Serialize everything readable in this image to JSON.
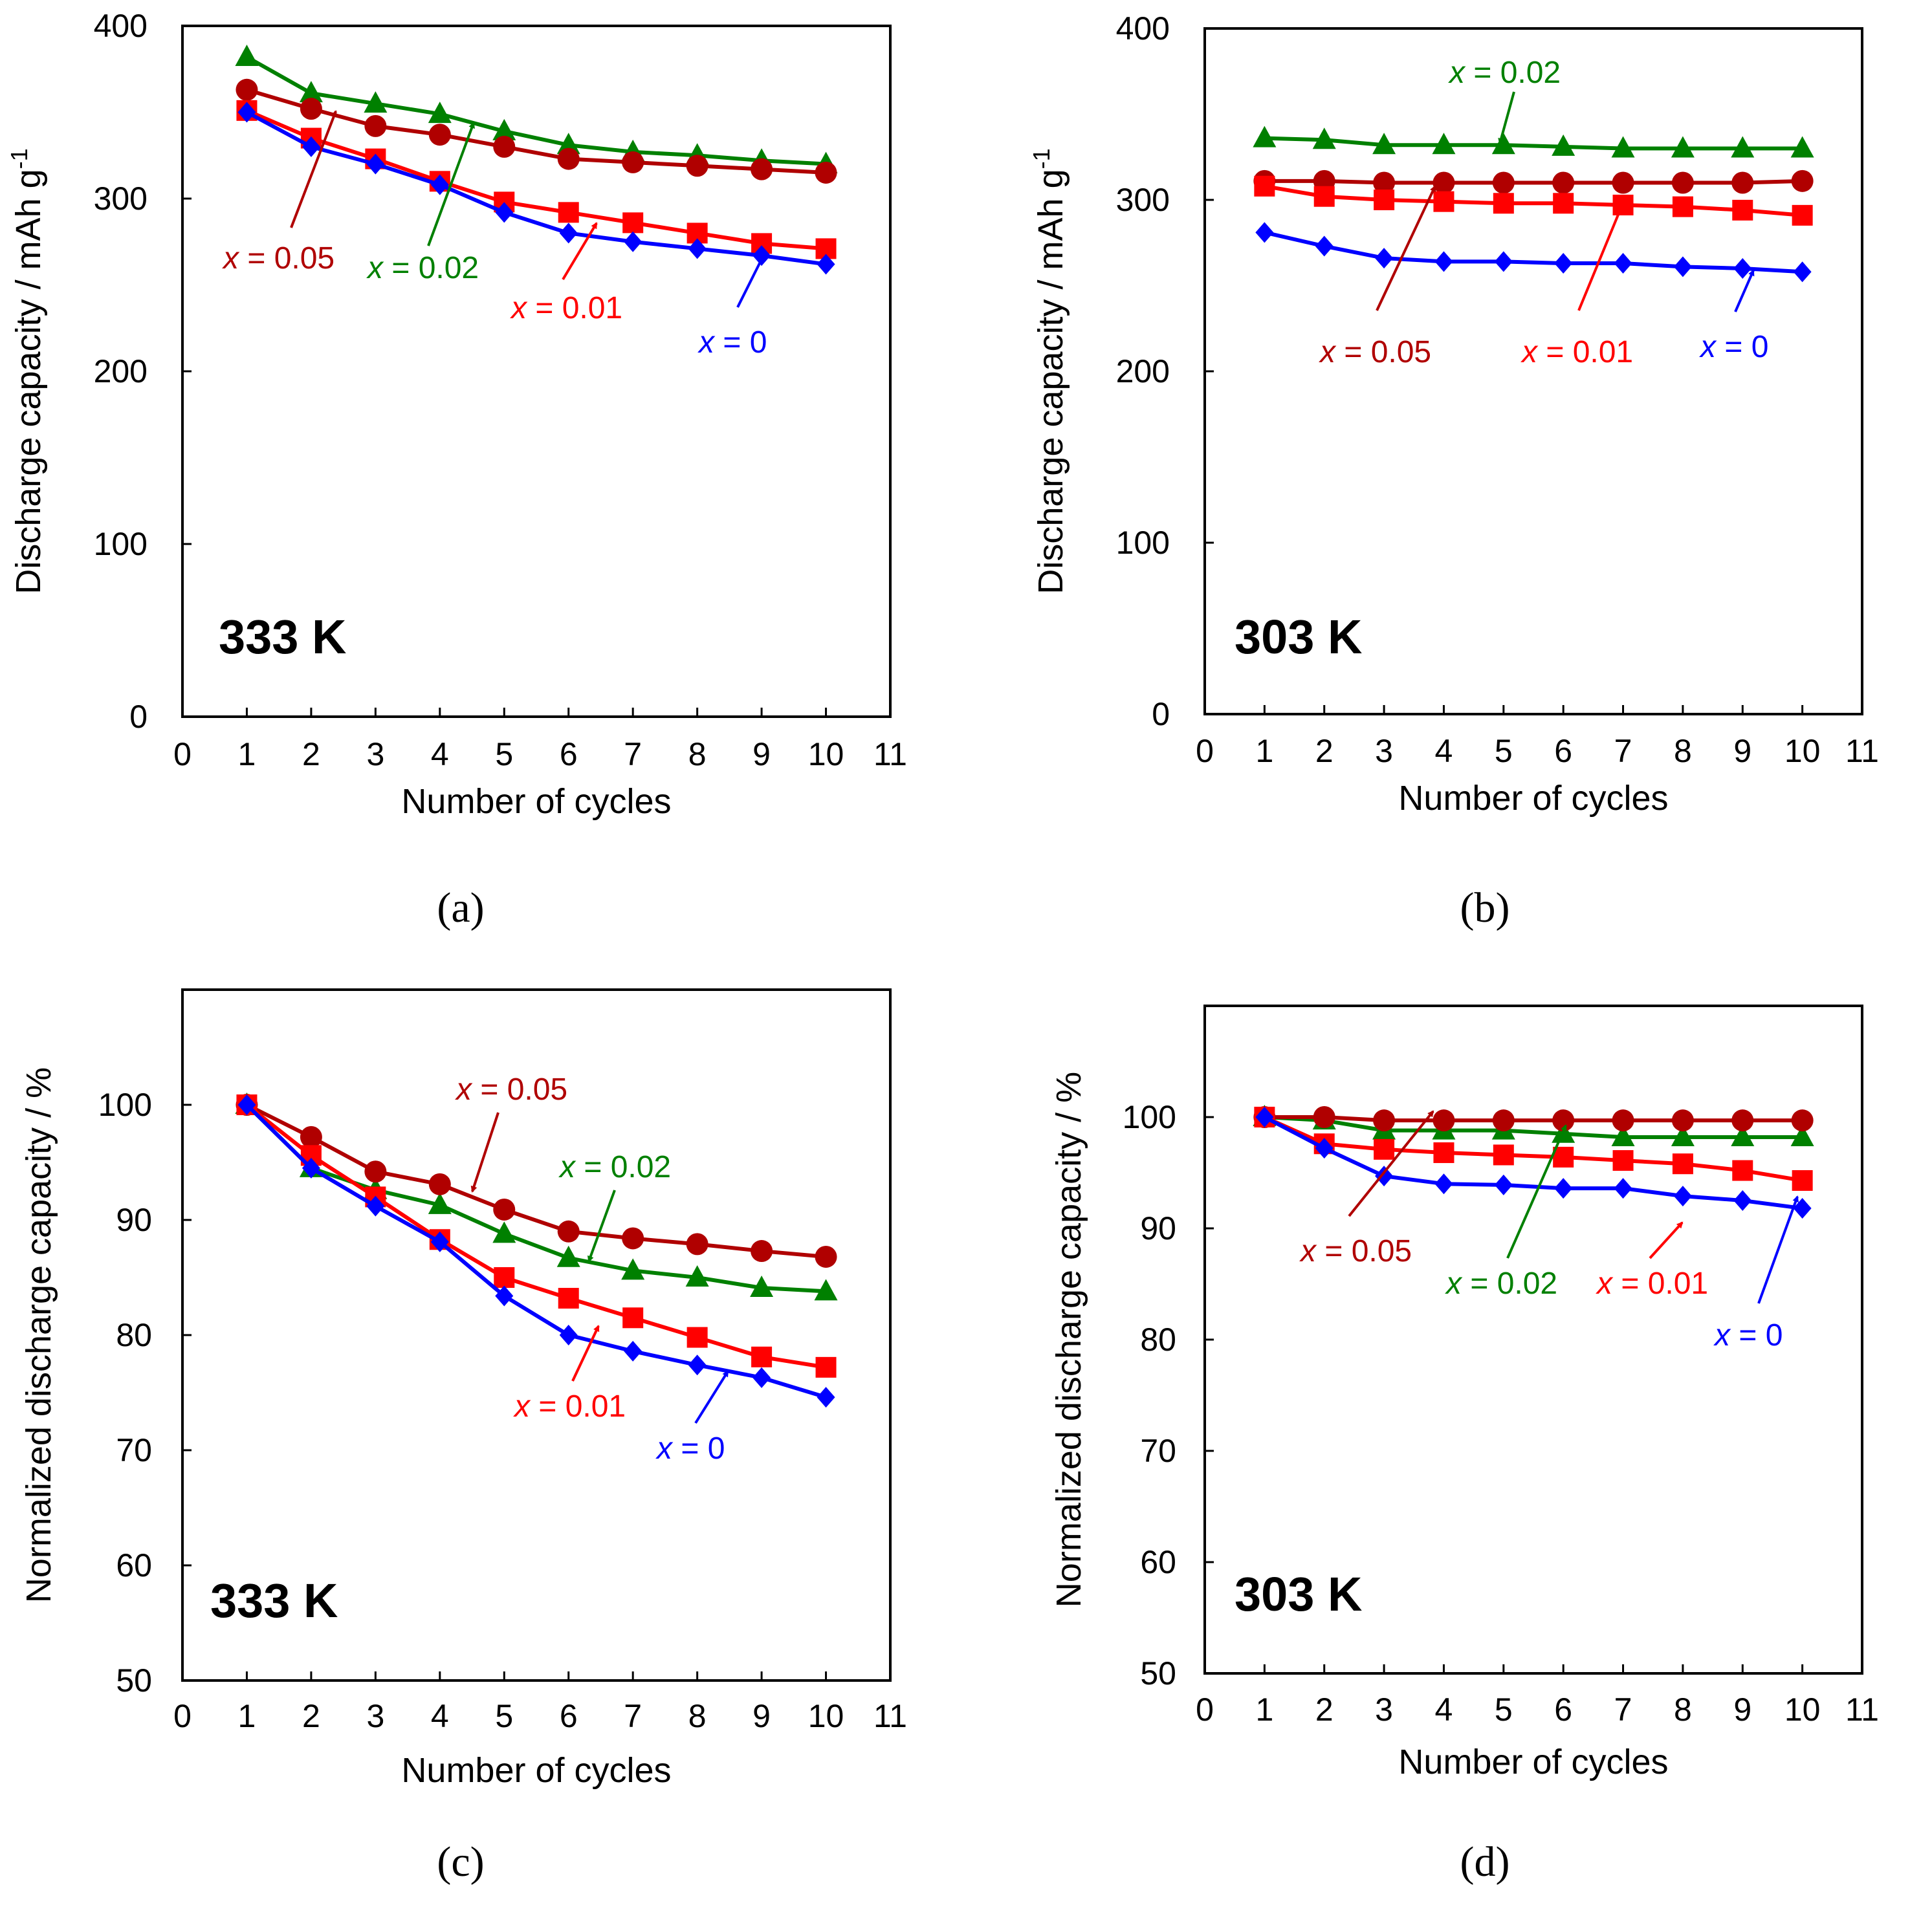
{
  "colors": {
    "x0": "#0000ff",
    "x001": "#ff0000",
    "x002": "#008000",
    "x005": "#b00000"
  },
  "chart_data": [
    {
      "type": "line",
      "panel": "a",
      "caption": "(a)",
      "temperature": "333 K",
      "xlabel": "Number of cycles",
      "ylabel": "Discharge capacity / mAh g-1",
      "ylabel_main": "Discharge capacity / mAh g",
      "ylabel_sup": "-1",
      "xlim": [
        0,
        11
      ],
      "ylim": [
        0,
        400
      ],
      "xticks": [
        0,
        1,
        2,
        3,
        4,
        5,
        6,
        7,
        8,
        9,
        10,
        11
      ],
      "yticks": [
        0,
        100,
        200,
        300,
        400
      ],
      "x": [
        1,
        2,
        3,
        4,
        5,
        6,
        7,
        8,
        9,
        10
      ],
      "series": [
        {
          "name": "x = 0",
          "x_label": "x",
          "value_label": " = 0",
          "marker": "diamond",
          "color_key": "x0",
          "values": [
            350,
            330,
            320,
            308,
            292,
            280,
            275,
            271,
            267,
            262
          ]
        },
        {
          "name": "x = 0.01",
          "x_label": "x",
          "value_label": " = 0.01",
          "marker": "square",
          "color_key": "x001",
          "values": [
            351,
            335,
            323,
            310,
            298,
            292,
            286,
            280,
            274,
            271
          ]
        },
        {
          "name": "x = 0.02",
          "x_label": "x",
          "value_label": " = 0.02",
          "marker": "triangle",
          "color_key": "x002",
          "values": [
            382,
            361,
            355,
            349,
            339,
            331,
            327,
            325,
            322,
            320
          ]
        },
        {
          "name": "x = 0.05",
          "x_label": "x",
          "value_label": " = 0.05",
          "marker": "circle",
          "color_key": "x005",
          "values": [
            363,
            352,
            342,
            337,
            330,
            323,
            321,
            319,
            317,
            315
          ]
        }
      ]
    },
    {
      "type": "line",
      "panel": "b",
      "caption": "(b)",
      "temperature": "303 K",
      "xlabel": "Number of cycles",
      "ylabel": "Discharge capacity / mAh g-1",
      "ylabel_main": "Discharge capacity / mAh g",
      "ylabel_sup": "-1",
      "xlim": [
        0,
        11
      ],
      "ylim": [
        0,
        400
      ],
      "xticks": [
        0,
        1,
        2,
        3,
        4,
        5,
        6,
        7,
        8,
        9,
        10,
        11
      ],
      "yticks": [
        0,
        100,
        200,
        300,
        400
      ],
      "x": [
        1,
        2,
        3,
        4,
        5,
        6,
        7,
        8,
        9,
        10
      ],
      "series": [
        {
          "name": "x = 0",
          "x_label": "x",
          "value_label": " = 0",
          "marker": "diamond",
          "color_key": "x0",
          "values": [
            281,
            273,
            266,
            264,
            264,
            263,
            263,
            261,
            260,
            258
          ]
        },
        {
          "name": "x = 0.01",
          "x_label": "x",
          "value_label": " = 0.01",
          "marker": "square",
          "color_key": "x001",
          "values": [
            308,
            302,
            300,
            299,
            298,
            298,
            297,
            296,
            294,
            291
          ]
        },
        {
          "name": "x = 0.02",
          "x_label": "x",
          "value_label": " = 0.02",
          "marker": "triangle",
          "color_key": "x002",
          "values": [
            336,
            335,
            332,
            332,
            332,
            331,
            330,
            330,
            330,
            330
          ]
        },
        {
          "name": "x = 0.05",
          "x_label": "x",
          "value_label": " = 0.05",
          "marker": "circle",
          "color_key": "x005",
          "values": [
            311,
            311,
            310,
            310,
            310,
            310,
            310,
            310,
            310,
            311
          ]
        }
      ]
    },
    {
      "type": "line",
      "panel": "c",
      "caption": "(c)",
      "temperature": "333 K",
      "xlabel": "Number of cycles",
      "ylabel": "Normalized discharge capacity / %",
      "ylabel_main": "Normalized discharge capacity / %",
      "ylabel_sup": "",
      "xlim": [
        0,
        11
      ],
      "ylim": [
        50,
        110
      ],
      "xticks": [
        0,
        1,
        2,
        3,
        4,
        5,
        6,
        7,
        8,
        9,
        10,
        11
      ],
      "yticks": [
        50,
        60,
        70,
        80,
        90,
        100
      ],
      "x": [
        1,
        2,
        3,
        4,
        5,
        6,
        7,
        8,
        9,
        10
      ],
      "series": [
        {
          "name": "x = 0",
          "x_label": "x",
          "value_label": " = 0",
          "marker": "diamond",
          "color_key": "x0",
          "values": [
            100,
            94.5,
            91.2,
            88.1,
            83.4,
            80.0,
            78.6,
            77.4,
            76.3,
            74.6
          ]
        },
        {
          "name": "x = 0.01",
          "x_label": "x",
          "value_label": " = 0.01",
          "marker": "square",
          "color_key": "x001",
          "values": [
            100,
            95.6,
            92.0,
            88.3,
            85.0,
            83.2,
            81.5,
            79.8,
            78.1,
            77.2
          ]
        },
        {
          "name": "x = 0.02",
          "x_label": "x",
          "value_label": " = 0.02",
          "marker": "triangle",
          "color_key": "x002",
          "values": [
            100,
            94.5,
            92.6,
            91.3,
            88.8,
            86.7,
            85.6,
            85.0,
            84.1,
            83.8
          ]
        },
        {
          "name": "x = 0.05",
          "x_label": "x",
          "value_label": " = 0.05",
          "marker": "circle",
          "color_key": "x005",
          "values": [
            100,
            97.2,
            94.2,
            93.1,
            90.9,
            89.0,
            88.4,
            87.9,
            87.3,
            86.8
          ]
        }
      ]
    },
    {
      "type": "line",
      "panel": "d",
      "caption": "(d)",
      "temperature": "303 K",
      "xlabel": "Number of cycles",
      "ylabel": "Normalized discharge capacity / %",
      "ylabel_main": "Normalized discharge capacity / %",
      "ylabel_sup": "",
      "xlim": [
        0,
        11
      ],
      "ylim": [
        50,
        110
      ],
      "xticks": [
        0,
        1,
        2,
        3,
        4,
        5,
        6,
        7,
        8,
        9,
        10,
        11
      ],
      "yticks": [
        50,
        60,
        70,
        80,
        90,
        100
      ],
      "x": [
        1,
        2,
        3,
        4,
        5,
        6,
        7,
        8,
        9,
        10
      ],
      "series": [
        {
          "name": "x = 0",
          "x_label": "x",
          "value_label": " = 0",
          "marker": "diamond",
          "color_key": "x0",
          "values": [
            100,
            97.2,
            94.7,
            94.0,
            93.9,
            93.6,
            93.6,
            92.9,
            92.5,
            91.8
          ]
        },
        {
          "name": "x = 0.01",
          "x_label": "x",
          "value_label": " = 0.01",
          "marker": "square",
          "color_key": "x001",
          "values": [
            100,
            97.6,
            97.1,
            96.8,
            96.6,
            96.4,
            96.1,
            95.8,
            95.2,
            94.3
          ]
        },
        {
          "name": "x = 0.02",
          "x_label": "x",
          "value_label": " = 0.02",
          "marker": "triangle",
          "color_key": "x002",
          "values": [
            100,
            99.7,
            98.8,
            98.8,
            98.8,
            98.5,
            98.2,
            98.2,
            98.2,
            98.2
          ]
        },
        {
          "name": "x = 0.05",
          "x_label": "x",
          "value_label": " = 0.05",
          "marker": "circle",
          "color_key": "x005",
          "values": [
            100,
            100,
            99.7,
            99.7,
            99.7,
            99.7,
            99.7,
            99.7,
            99.7,
            99.7
          ]
        }
      ]
    }
  ]
}
